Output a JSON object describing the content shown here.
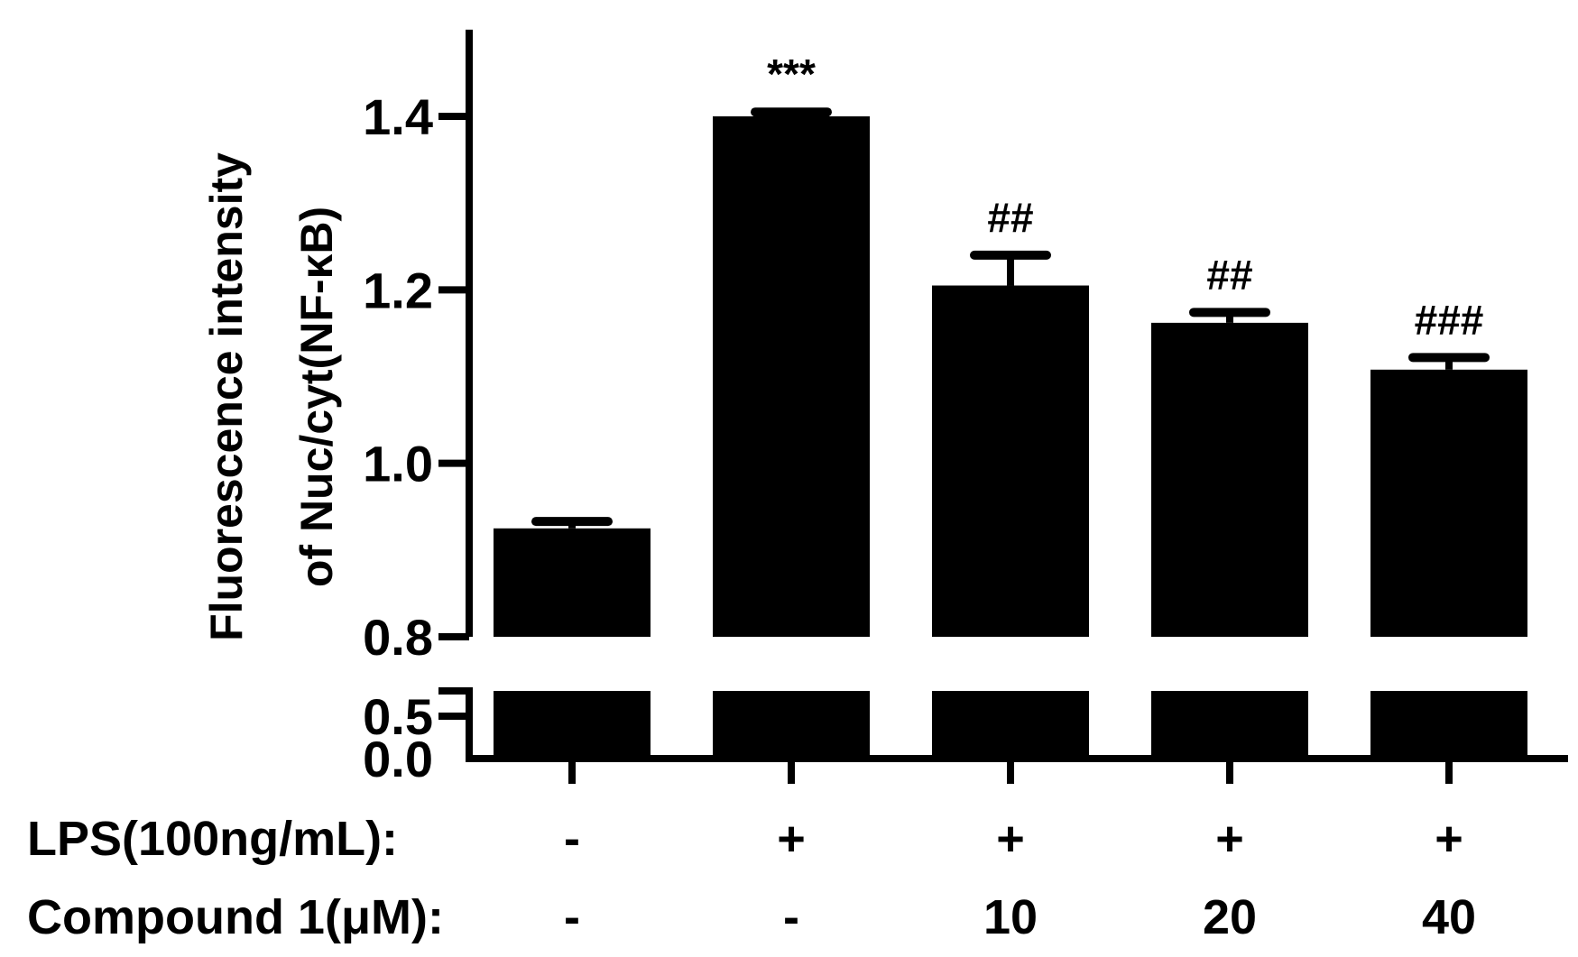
{
  "chart_data": {
    "type": "bar",
    "ylabel_lines": [
      "Fluorescence intensity",
      "of Nuc/cyt(NF-κB)"
    ],
    "y_axis": {
      "broken": true,
      "lower_segment": {
        "range": [
          0.0,
          0.6
        ],
        "ticks": [
          0.0,
          0.5
        ],
        "tick_labels": [
          "0.0",
          "0.5"
        ]
      },
      "upper_segment": {
        "range": [
          0.8,
          1.5
        ],
        "ticks": [
          0.8,
          1.0,
          1.2,
          1.4
        ],
        "tick_labels": [
          "0.8",
          "1.0",
          "1.2",
          "1.4"
        ]
      }
    },
    "values": [
      0.925,
      1.4,
      1.205,
      1.162,
      1.108
    ],
    "errors": [
      0.008,
      0.005,
      0.035,
      0.012,
      0.014
    ],
    "significance": [
      "",
      "***",
      "##",
      "##",
      "###"
    ],
    "bar_color": "#000000",
    "condition_rows": [
      {
        "label": "LPS(100ng/mL):",
        "values": [
          "-",
          "+",
          "+",
          "+",
          "+"
        ]
      },
      {
        "label": "Compound 1(μM):",
        "values": [
          "-",
          "-",
          "10",
          "20",
          "40"
        ]
      }
    ]
  }
}
